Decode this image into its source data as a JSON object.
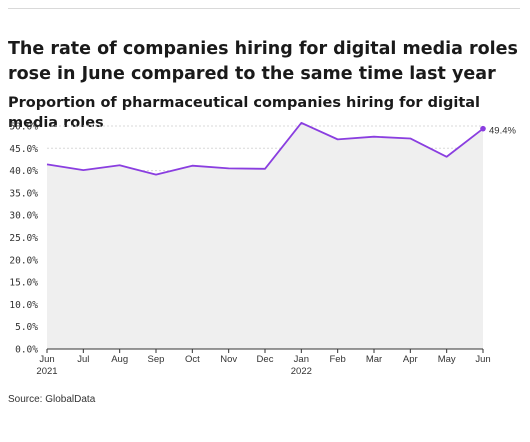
{
  "header": {
    "title": "The rate of companies hiring for digital media roles rose in June compared to the same time last year",
    "subtitle": "Proportion of pharmaceutical companies hiring for digital media roles"
  },
  "footer": {
    "source": "Source: GlobalData"
  },
  "chart_data": {
    "type": "area",
    "title": "The rate of companies hiring for digital media roles rose in June compared to the same time last year",
    "subtitle": "Proportion of pharmaceutical companies hiring for digital media roles",
    "x": [
      "Jun 2021",
      "Jul 2021",
      "Aug 2021",
      "Sep 2021",
      "Oct 2021",
      "Nov 2021",
      "Dec 2021",
      "Jan 2022",
      "Feb 2022",
      "Mar 2022",
      "Apr 2022",
      "May 2022",
      "Jun 2022"
    ],
    "x_tick_labels": [
      {
        "month": "Jun",
        "year": "2021"
      },
      {
        "month": "Jul",
        "year": ""
      },
      {
        "month": "Aug",
        "year": ""
      },
      {
        "month": "Sep",
        "year": ""
      },
      {
        "month": "Oct",
        "year": ""
      },
      {
        "month": "Nov",
        "year": ""
      },
      {
        "month": "Dec",
        "year": ""
      },
      {
        "month": "Jan",
        "year": "2022"
      },
      {
        "month": "Feb",
        "year": ""
      },
      {
        "month": "Mar",
        "year": ""
      },
      {
        "month": "Apr",
        "year": ""
      },
      {
        "month": "May",
        "year": ""
      },
      {
        "month": "Jun",
        "year": ""
      }
    ],
    "series": [
      {
        "values": [
          41.4,
          40.1,
          41.2,
          39.1,
          41.1,
          40.5,
          40.4,
          50.7,
          47.0,
          47.6,
          47.2,
          43.1,
          49.4
        ]
      }
    ],
    "y_ticks": [
      0,
      5,
      10,
      15,
      20,
      25,
      30,
      35,
      40,
      45,
      50
    ],
    "y_tick_labels": [
      "0.0%",
      "5.0%",
      "10.0%",
      "15.0%",
      "20.0%",
      "25.0%",
      "30.0%",
      "35.0%",
      "40.0%",
      "45.0%",
      "50.0%"
    ],
    "ylim": [
      0,
      50
    ],
    "end_label": "49.4%",
    "xlabel": "",
    "ylabel": "",
    "grid": true,
    "colors": {
      "line": "#8a3ee0",
      "area": "#efefef",
      "grid": "#d8d8d8",
      "axis": "#333333"
    }
  }
}
